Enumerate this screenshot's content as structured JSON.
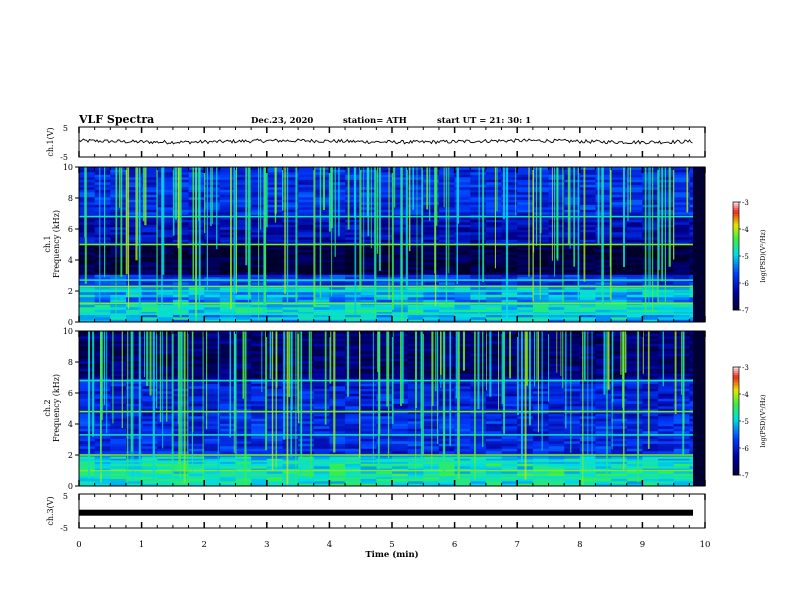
{
  "header": {
    "title": "VLF Spectra",
    "date": "Dec.23, 2020",
    "station": "station= ATH",
    "start": "start  UT =   21: 30: 1"
  },
  "chart_data": [
    {
      "type": "line",
      "ylabel": "ch.1(V)",
      "ylim": [
        -5,
        5
      ],
      "yticks": [
        "5",
        "-5"
      ],
      "trace_mean": 0.2,
      "trace_amplitude": 0.6
    },
    {
      "type": "heatmap",
      "ylabel_top": "ch.1",
      "ylabel": "Frequency  (kHz)",
      "ylim": [
        0,
        10
      ],
      "yticks": [
        "0",
        "2",
        "4",
        "6",
        "8",
        "10"
      ],
      "colorbar_label": "log(PSD)(V²/Hz)",
      "colorbar_range": [
        -7,
        -3
      ],
      "colorbar_ticks": [
        "-3",
        "-4",
        "-5",
        "-6",
        "-7"
      ],
      "bright_bands_khz": [
        0.5,
        1.2,
        2.0,
        2.3,
        2.7,
        5.0,
        6.8
      ],
      "dark_band_khz": [
        3.0,
        5.0
      ]
    },
    {
      "type": "heatmap",
      "ylabel_top": "ch.2",
      "ylabel": "Frequency  (kHz)",
      "ylim": [
        0,
        10
      ],
      "yticks": [
        "0",
        "2",
        "4",
        "6",
        "8",
        "10"
      ],
      "colorbar_label": "log(PSD)(V²/Hz)",
      "colorbar_range": [
        -7,
        -3
      ],
      "colorbar_ticks": [
        "-3",
        "-4",
        "-5",
        "-6",
        "-7"
      ],
      "bright_bands_khz": [
        0.6,
        1.0,
        1.6,
        2.0,
        3.3,
        4.8,
        6.8
      ],
      "dark_band_khz": [
        7.0,
        10.0
      ]
    },
    {
      "type": "line",
      "ylabel": "ch.3(V)",
      "ylim": [
        -5,
        5
      ],
      "yticks": [
        "5",
        "-5"
      ],
      "trace_value": -0.5
    }
  ],
  "xaxis": {
    "label": "Time  (min)",
    "xlim": [
      0,
      10
    ],
    "ticks": [
      "0",
      "1",
      "2",
      "3",
      "4",
      "5",
      "6",
      "7",
      "8",
      "9",
      "10"
    ]
  },
  "colors": {
    "frame": "#000000",
    "trace": "#000000",
    "spectrogram_floor": "#000033"
  }
}
